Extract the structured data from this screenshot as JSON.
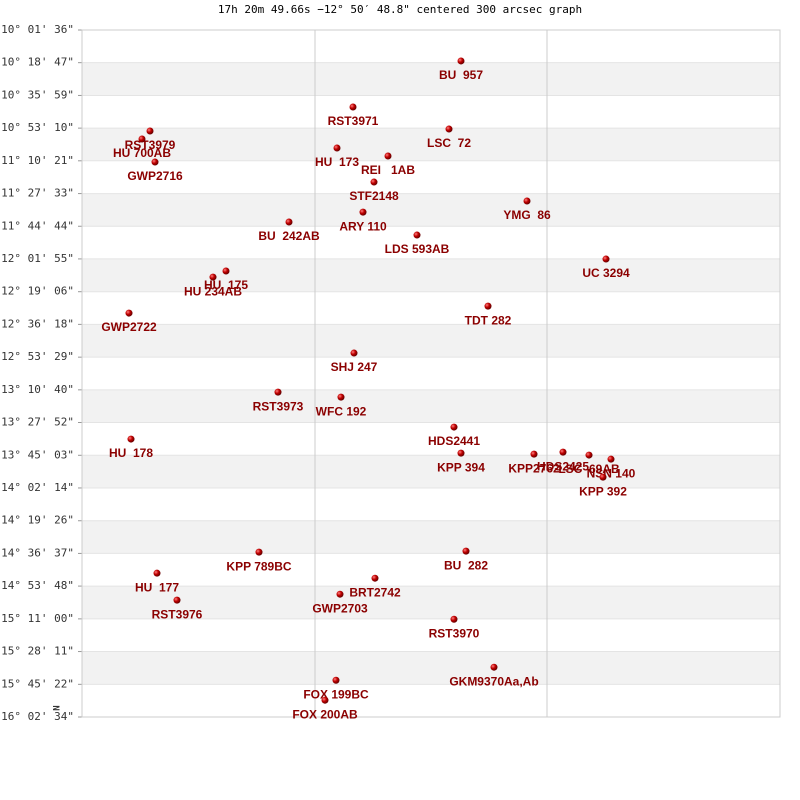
{
  "chart_data": {
    "type": "scatter",
    "title": "17h 20m 49.66s −12° 50′ 48.8\" centered 300 arcsec graph",
    "north_label": "N",
    "color": "#c00000",
    "label_color": "#8b0000",
    "band_color": "#f2f2f2",
    "xlim": [
      0,
      698
    ],
    "xticks": [
      233,
      465
    ],
    "ylim": [
      -16.041,
      -10.027
    ],
    "yticks": [
      {
        "value": -10.027,
        "label": "-10° 01' 36\""
      },
      {
        "value": -10.313,
        "label": "-10° 18' 47\""
      },
      {
        "value": -10.6,
        "label": "-10° 35' 59\""
      },
      {
        "value": -10.886,
        "label": "-10° 53' 10\""
      },
      {
        "value": -11.172,
        "label": "-11° 10' 21\""
      },
      {
        "value": -11.459,
        "label": "-11° 27' 33\""
      },
      {
        "value": -11.745,
        "label": "-11° 44' 44\""
      },
      {
        "value": -12.031,
        "label": "-12° 01' 55\""
      },
      {
        "value": -12.318,
        "label": "-12° 19' 06\""
      },
      {
        "value": -12.604,
        "label": "-12° 36' 18\""
      },
      {
        "value": -12.891,
        "label": "-12° 53' 29\""
      },
      {
        "value": -13.177,
        "label": "-13° 10' 40\""
      },
      {
        "value": -13.463,
        "label": "-13° 27' 52\""
      },
      {
        "value": -13.75,
        "label": "-13° 45' 03\""
      },
      {
        "value": -14.036,
        "label": "-14° 02' 14\""
      },
      {
        "value": -14.323,
        "label": "-14° 19' 26\""
      },
      {
        "value": -14.609,
        "label": "-14° 36' 37\""
      },
      {
        "value": -14.895,
        "label": "-14° 53' 48\""
      },
      {
        "value": -15.182,
        "label": "-15° 11' 00\""
      },
      {
        "value": -15.468,
        "label": "-15° 28' 11\""
      },
      {
        "value": -15.755,
        "label": "-15° 45' 22\""
      },
      {
        "value": -16.041,
        "label": "-16° 02' 34\""
      }
    ],
    "points": [
      {
        "label": "BU  957",
        "x": 379,
        "y": -10.298
      },
      {
        "label": "RST3971",
        "x": 271,
        "y": -10.701
      },
      {
        "label": "LSC  72",
        "x": 367,
        "y": -10.894
      },
      {
        "label": "RST3979",
        "x": 68,
        "y": -10.911
      },
      {
        "label": "HU 700AB",
        "x": 60,
        "y": -10.981
      },
      {
        "label": "GWP2716",
        "x": 73,
        "y": -11.183
      },
      {
        "label": "HU  173",
        "x": 255,
        "y": -11.06
      },
      {
        "label": "REI   1AB",
        "x": 306,
        "y": -11.13
      },
      {
        "label": "STF2148",
        "x": 292,
        "y": -11.358
      },
      {
        "label": "YMG  86",
        "x": 445,
        "y": -11.524
      },
      {
        "label": "ARY 110",
        "x": 281,
        "y": -11.621
      },
      {
        "label": "BU  242AB",
        "x": 207,
        "y": -11.708
      },
      {
        "label": "LDS 593AB",
        "x": 335,
        "y": -11.822
      },
      {
        "label": "UC 3294",
        "x": 524,
        "y": -12.032
      },
      {
        "label": "HU  175",
        "x": 144,
        "y": -12.137
      },
      {
        "label": "HU 234AB",
        "x": 131,
        "y": -12.19
      },
      {
        "label": "GWP2722",
        "x": 47,
        "y": -12.505
      },
      {
        "label": "TDT 282",
        "x": 406,
        "y": -12.444
      },
      {
        "label": "SHJ 247",
        "x": 272,
        "y": -12.855
      },
      {
        "label": "RST3973",
        "x": 196,
        "y": -13.197
      },
      {
        "label": "WFC 192",
        "x": 259,
        "y": -13.241
      },
      {
        "label": "HDS2441",
        "x": 372,
        "y": -13.503
      },
      {
        "label": "HU  178",
        "x": 49,
        "y": -13.608
      },
      {
        "label": "KPP 394",
        "x": 379,
        "y": -13.731
      },
      {
        "label": "KPP2762",
        "x": 452,
        "y": -13.74
      },
      {
        "label": "HDS2425",
        "x": 481,
        "y": -13.722
      },
      {
        "label": "LSC  69AB",
        "x": 507,
        "y": -13.748
      },
      {
        "label": "NSN 140",
        "x": 529,
        "y": -13.784
      },
      {
        "label": "KPP 392",
        "x": 521,
        "y": -13.941
      },
      {
        "label": "BU  282",
        "x": 384,
        "y": -14.589
      },
      {
        "label": "KPP 789BC",
        "x": 177,
        "y": -14.598
      },
      {
        "label": "HU  177",
        "x": 75,
        "y": -14.782
      },
      {
        "label": "BRT2742",
        "x": 293,
        "y": -14.826
      },
      {
        "label": "GWP2703",
        "x": 258,
        "y": -14.966
      },
      {
        "label": "RST3976",
        "x": 95,
        "y": -15.018
      },
      {
        "label": "RST3970",
        "x": 372,
        "y": -15.185
      },
      {
        "label": "GKM9370Aa,Ab",
        "x": 412,
        "y": -15.605
      },
      {
        "label": "FOX 199BC",
        "x": 254,
        "y": -15.719
      },
      {
        "label": "FOX 200AB",
        "x": 243,
        "y": -15.894
      }
    ]
  }
}
